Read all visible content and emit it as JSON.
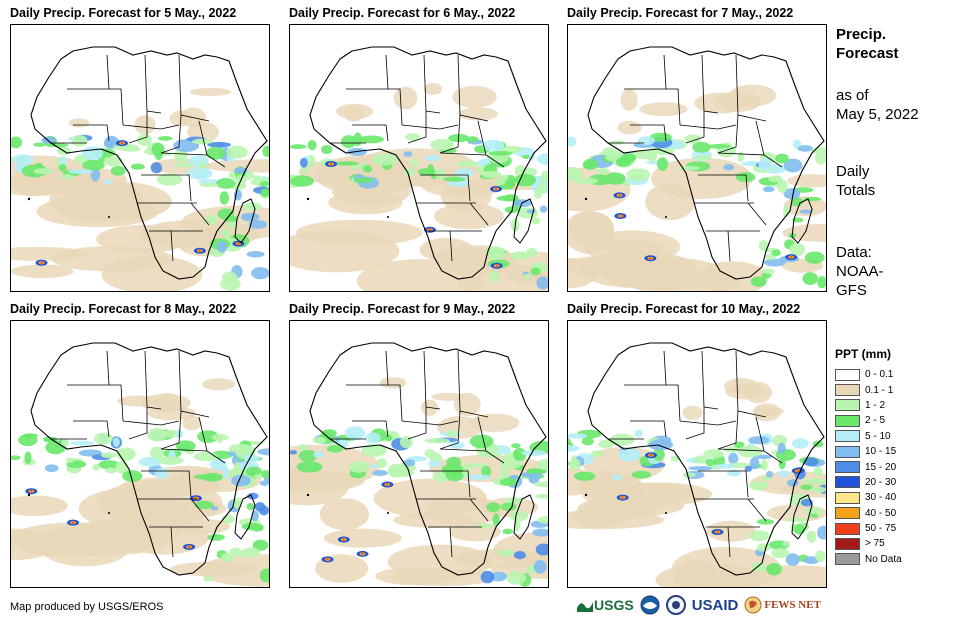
{
  "panels": [
    {
      "title": "Daily Precip. Forecast for 5 May., 2022",
      "day": 0
    },
    {
      "title": "Daily Precip. Forecast for 6 May., 2022",
      "day": 1
    },
    {
      "title": "Daily Precip. Forecast for 7 May., 2022",
      "day": 2
    },
    {
      "title": "Daily Precip. Forecast for 8 May., 2022",
      "day": 3
    },
    {
      "title": "Daily Precip. Forecast for 9 May., 2022",
      "day": 4
    },
    {
      "title": "Daily Precip. Forecast for 10 May., 2022",
      "day": 5
    }
  ],
  "side": {
    "title_line1": "Precip.",
    "title_line2": "Forecast",
    "asof_line1": "as of",
    "asof_line2": "May 5, 2022",
    "totals_line1": "Daily",
    "totals_line2": "Totals",
    "data_line1": "Data:",
    "data_line2": "NOAA-",
    "data_line3": "GFS"
  },
  "legend": {
    "title": "PPT (mm)",
    "items": [
      {
        "label": "0 - 0.1",
        "color": "#ffffff"
      },
      {
        "label": "0.1 - 1",
        "color": "#e9d7b8"
      },
      {
        "label": "1 - 2",
        "color": "#b9f5b0"
      },
      {
        "label": "2 - 5",
        "color": "#69e86c"
      },
      {
        "label": "5 - 10",
        "color": "#b5eef7"
      },
      {
        "label": "10 - 15",
        "color": "#82bdf0"
      },
      {
        "label": "15 - 20",
        "color": "#4f8ee8"
      },
      {
        "label": "20 - 30",
        "color": "#1f52d8"
      },
      {
        "label": "30 - 40",
        "color": "#fde68a"
      },
      {
        "label": "40 - 50",
        "color": "#f7a21b"
      },
      {
        "label": "50 - 75",
        "color": "#f0401a"
      },
      {
        "label": "> 75",
        "color": "#a31919"
      },
      {
        "label": "No Data",
        "color": "#9a9a9a"
      }
    ]
  },
  "credit": "Map produced by USGS/EROS",
  "logos": {
    "usgs": "USGS",
    "usaid": "USAID",
    "fewsnet": "FEWS NET"
  }
}
